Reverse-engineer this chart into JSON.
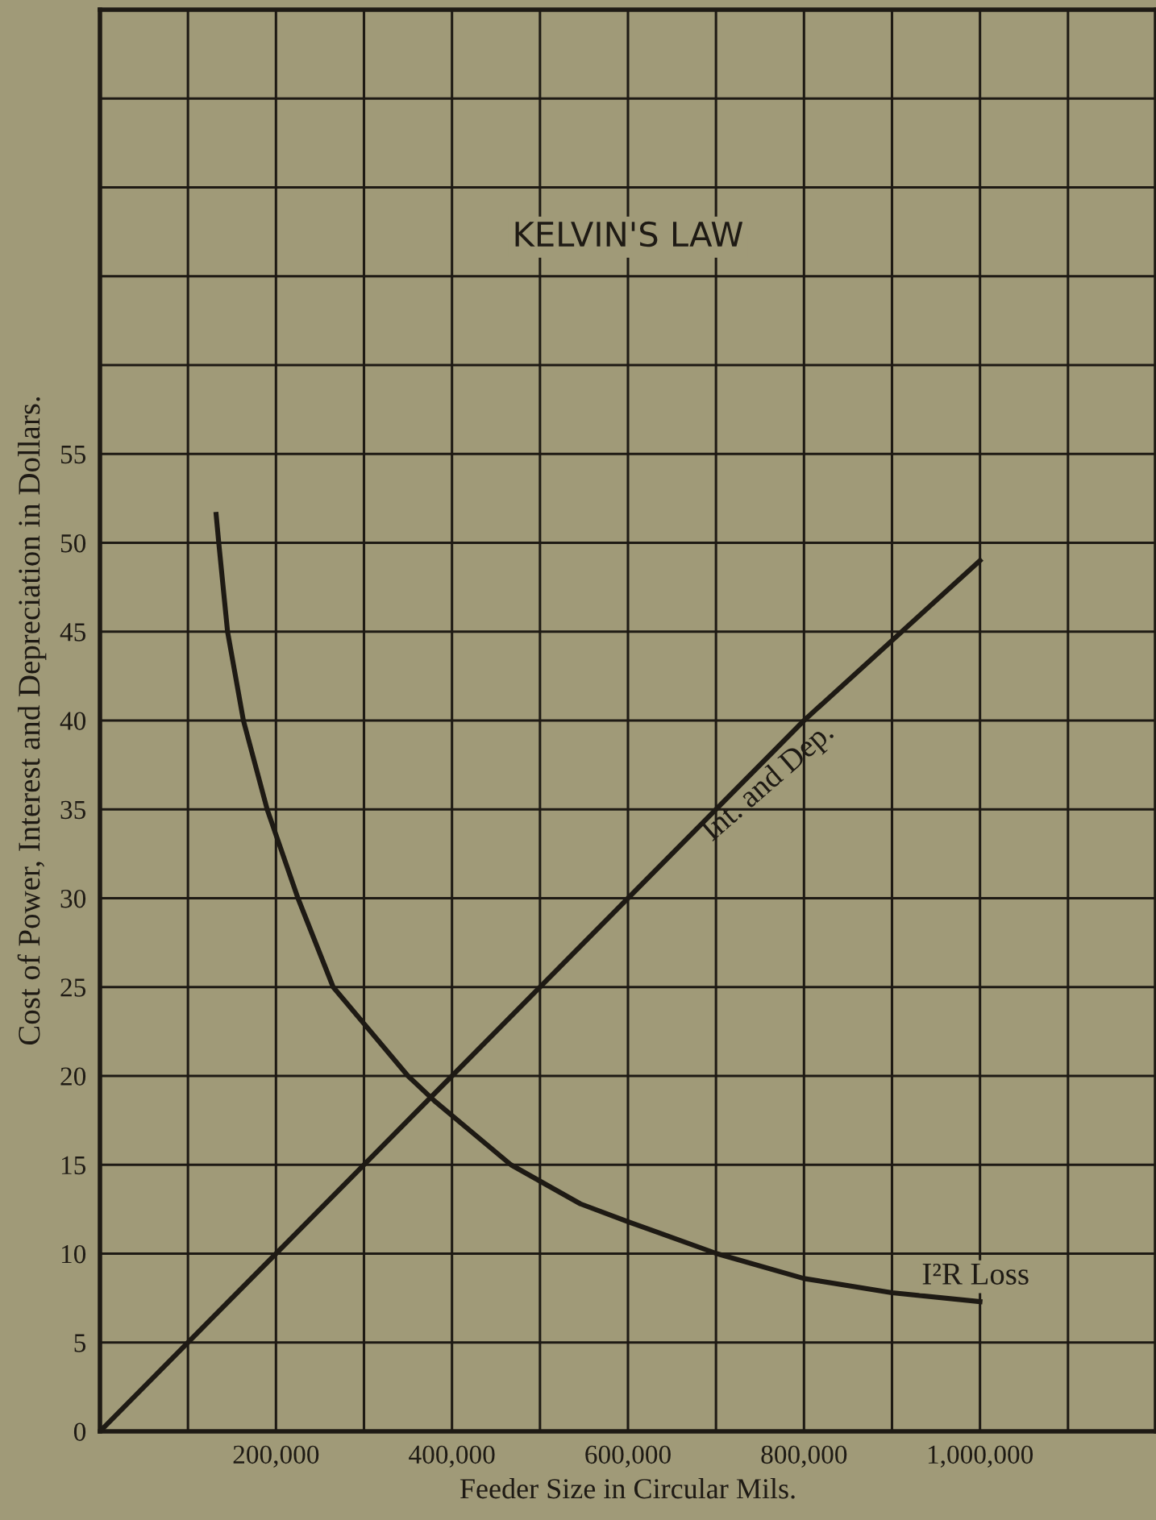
{
  "chart_data": {
    "type": "line",
    "title": "KELVIN'S LAW",
    "xlabel": "Feeder Size in Circular Mils.",
    "ylabel": "Cost of Power, Interest and Depreciation in Dollars.",
    "series": [
      {
        "name": "Int. and Dep.",
        "color": "#1e1a14",
        "x": [
          0,
          200000,
          400000,
          600000,
          800000,
          1000000
        ],
        "values": [
          0,
          10,
          20,
          30,
          40,
          49
        ]
      },
      {
        "name": "I²R Loss",
        "color": "#1e1a14",
        "x": [
          132000,
          135000,
          145000,
          163000,
          190000,
          225000,
          265000,
          350000,
          380000,
          467000,
          546000,
          600000,
          701000,
          800000,
          900000,
          1000000
        ],
        "values": [
          51.6,
          50,
          45,
          40,
          35,
          30,
          25,
          20,
          18.6,
          15,
          12.8,
          11.8,
          10,
          8.6,
          7.8,
          7.3
        ]
      }
    ],
    "xlim": [
      0,
      1200000
    ],
    "ylim": [
      0,
      80
    ],
    "xticks": [
      {
        "value": 100000,
        "label": null
      },
      {
        "value": 200000,
        "label": "200,000"
      },
      {
        "value": 300000,
        "label": null
      },
      {
        "value": 400000,
        "label": "400,000"
      },
      {
        "value": 500000,
        "label": null
      },
      {
        "value": 600000,
        "label": "600,000"
      },
      {
        "value": 700000,
        "label": null
      },
      {
        "value": 800000,
        "label": "800,000"
      },
      {
        "value": 900000,
        "label": null
      },
      {
        "value": 1000000,
        "label": "1,000,000"
      },
      {
        "value": 1100000,
        "label": null
      }
    ],
    "yticks": [
      0,
      5,
      10,
      15,
      20,
      25,
      30,
      35,
      40,
      45,
      50,
      55,
      {
        "value": 60,
        "label": null
      },
      {
        "value": 65,
        "label": null
      },
      {
        "value": 70,
        "label": null
      },
      {
        "value": 75,
        "label": null
      }
    ],
    "grid": true,
    "marker": "none",
    "line_style": "solid"
  }
}
